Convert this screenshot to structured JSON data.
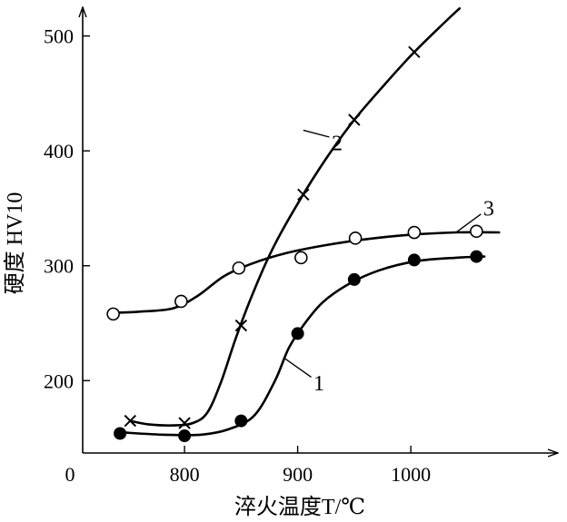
{
  "chart_data": {
    "type": "line",
    "xlabel": "淬火温度T/℃",
    "ylabel": "硬度 HV10",
    "origin_label": "0",
    "x_ticks": [
      800,
      900,
      1000
    ],
    "y_ticks": [
      200,
      300,
      400,
      500
    ],
    "xlim": [
      710,
      1130
    ],
    "ylim": [
      137,
      525
    ],
    "grid": false,
    "series": [
      {
        "name": "1",
        "marker": "filled-circle",
        "points": [
          [
            743,
            154
          ],
          [
            800,
            152
          ],
          [
            850,
            165
          ],
          [
            900,
            241
          ],
          [
            950,
            288
          ],
          [
            1003,
            305
          ],
          [
            1058,
            308
          ]
        ],
        "curve": [
          [
            743,
            155
          ],
          [
            780,
            153
          ],
          [
            815,
            153
          ],
          [
            840,
            158
          ],
          [
            862,
            170
          ],
          [
            880,
            200
          ],
          [
            892,
            228
          ],
          [
            905,
            248
          ],
          [
            922,
            268
          ],
          [
            945,
            284
          ],
          [
            972,
            296
          ],
          [
            1005,
            304
          ],
          [
            1040,
            307
          ],
          [
            1065,
            308
          ]
        ]
      },
      {
        "name": "2",
        "marker": "cross",
        "points": [
          [
            752,
            165
          ],
          [
            800,
            163
          ],
          [
            850,
            248
          ],
          [
            905,
            362
          ],
          [
            950,
            427
          ],
          [
            1003,
            486
          ]
        ],
        "curve": [
          [
            752,
            165
          ],
          [
            768,
            162
          ],
          [
            790,
            161
          ],
          [
            807,
            163
          ],
          [
            820,
            172
          ],
          [
            832,
            198
          ],
          [
            845,
            236
          ],
          [
            860,
            275
          ],
          [
            878,
            315
          ],
          [
            900,
            354
          ],
          [
            925,
            393
          ],
          [
            950,
            427
          ],
          [
            978,
            459
          ],
          [
            1003,
            486
          ],
          [
            1030,
            512
          ],
          [
            1043,
            524
          ]
        ]
      },
      {
        "name": "3",
        "marker": "open-circle",
        "points": [
          [
            737,
            258
          ],
          [
            797,
            269
          ],
          [
            848,
            298
          ],
          [
            903,
            307
          ],
          [
            951,
            324
          ],
          [
            1003,
            329
          ],
          [
            1058,
            330
          ]
        ],
        "curve": [
          [
            737,
            259
          ],
          [
            760,
            260
          ],
          [
            790,
            263
          ],
          [
            812,
            274
          ],
          [
            835,
            291
          ],
          [
            860,
            302
          ],
          [
            890,
            311
          ],
          [
            925,
            318
          ],
          [
            960,
            323
          ],
          [
            1000,
            327
          ],
          [
            1040,
            329
          ],
          [
            1078,
            329
          ]
        ]
      }
    ]
  }
}
